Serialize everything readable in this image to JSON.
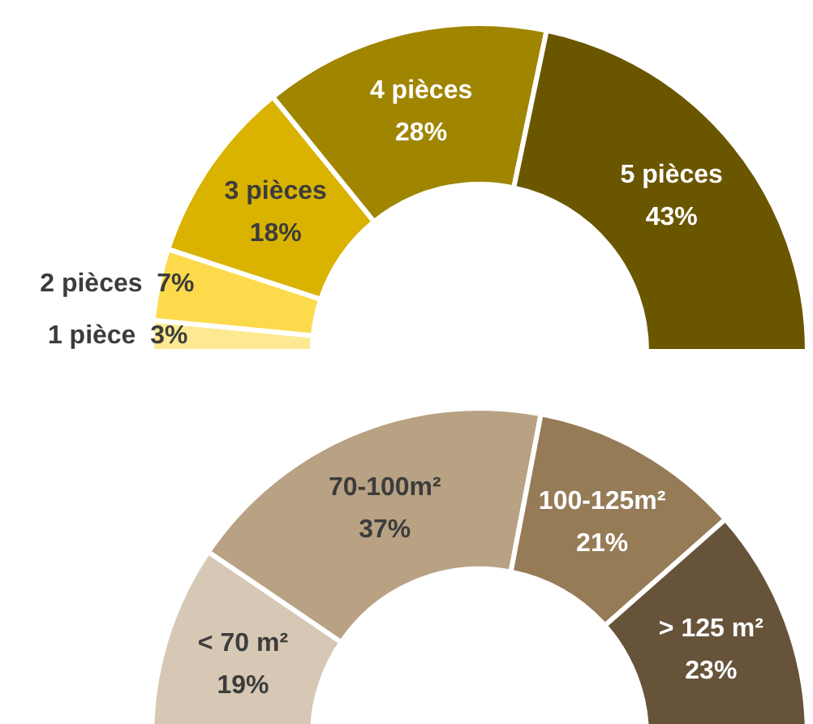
{
  "chart_data": [
    {
      "type": "donut",
      "categories": [
        "1 pièce",
        "2 pièces",
        "3 pièces",
        "4 pièces",
        "5 pièces"
      ],
      "values": [
        3,
        7,
        18,
        28,
        43
      ],
      "value_labels": [
        "3%",
        "7%",
        "18%",
        "28%",
        "43%"
      ],
      "colors": [
        "#fde992",
        "#fdda4c",
        "#d9b300",
        "#a08500",
        "#6b5600"
      ]
    },
    {
      "type": "donut",
      "categories": [
        "< 70 m²",
        "70-100m²",
        "100-125m²",
        "> 125 m²"
      ],
      "values": [
        19,
        37,
        21,
        23
      ],
      "value_labels": [
        "19%",
        "37%",
        "21%",
        "23%"
      ],
      "colors": [
        "#d6c8b4",
        "#b8a283",
        "#967b57",
        "#66533a"
      ]
    }
  ]
}
